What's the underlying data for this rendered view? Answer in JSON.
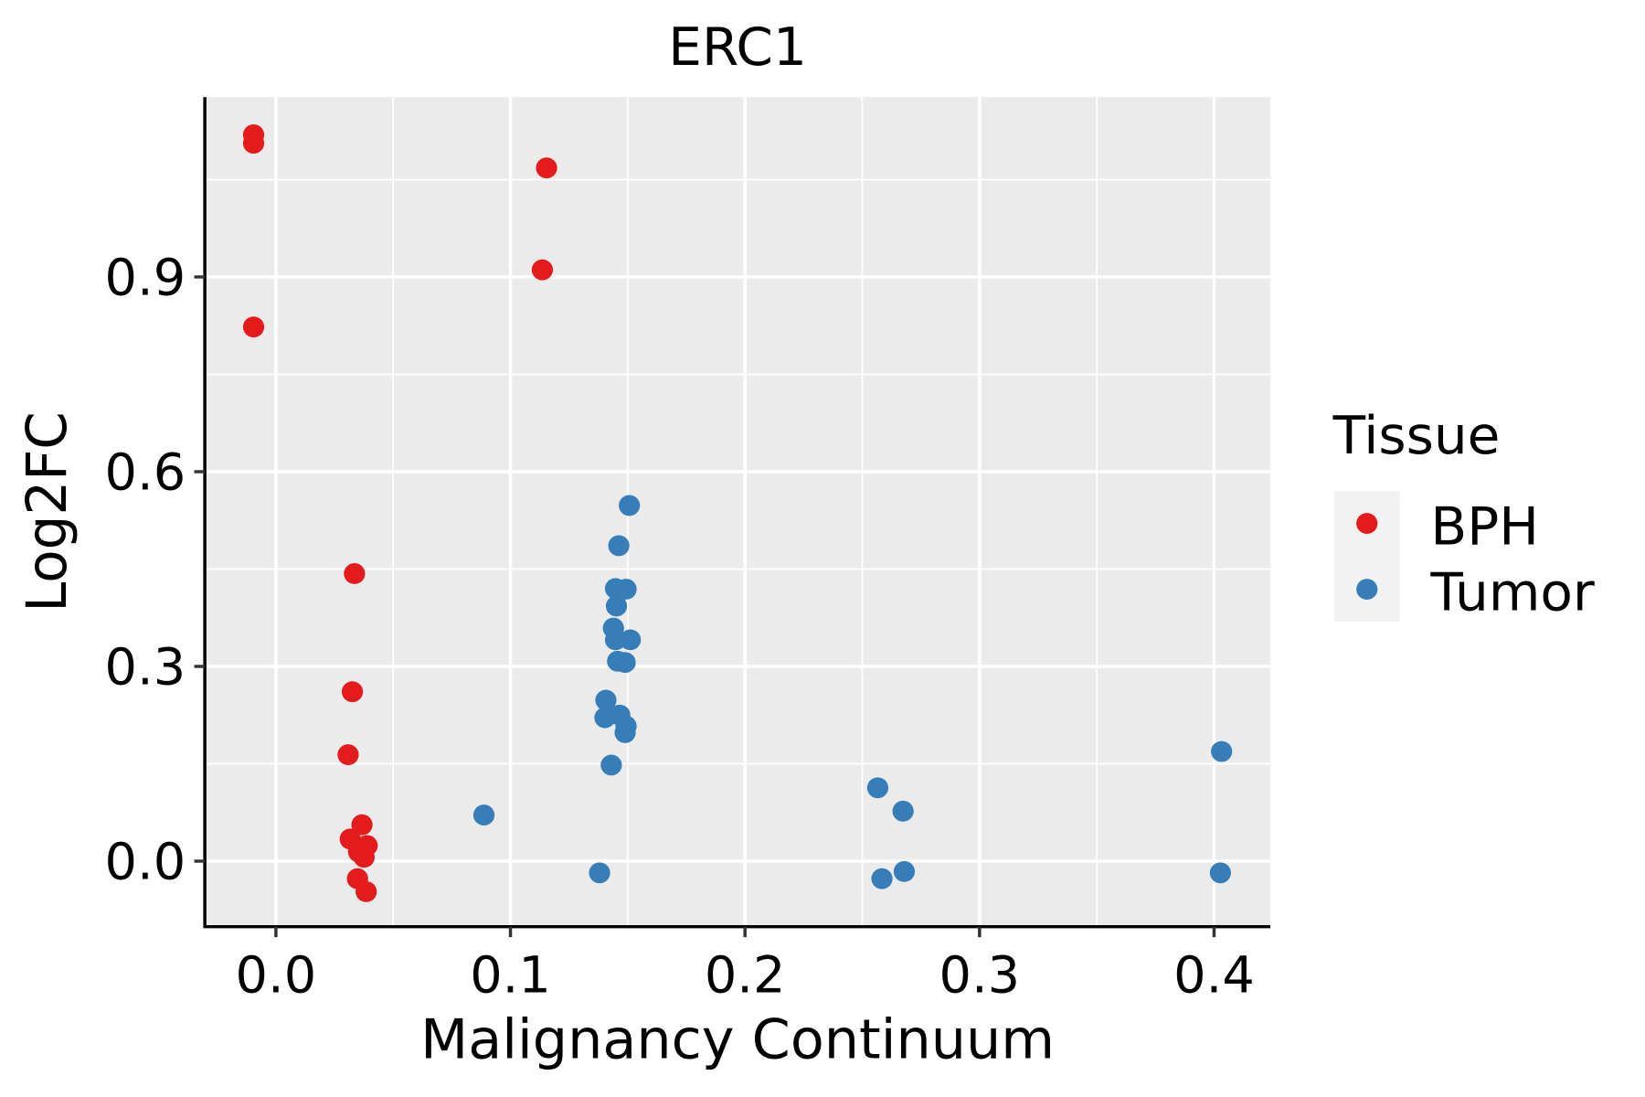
{
  "chart_data": {
    "type": "scatter",
    "title": "ERC1",
    "xlabel": "Malignancy Continuum",
    "ylabel": "Log2FC",
    "xlim": [
      -0.0303,
      0.424
    ],
    "ylim": [
      -0.101,
      1.177
    ],
    "xticks": [
      0.0,
      0.1,
      0.2,
      0.3,
      0.4
    ],
    "xtick_labels": [
      "0.0",
      "0.1",
      "0.2",
      "0.3",
      "0.4"
    ],
    "yticks": [
      0.0,
      0.3,
      0.6,
      0.9
    ],
    "ytick_labels": [
      "0.0",
      "0.3",
      "0.6",
      "0.9"
    ],
    "grid": true,
    "legend": {
      "title": "Tissue",
      "placement": "right"
    },
    "series": [
      {
        "name": "BPH",
        "color": "#E41A1C",
        "points": [
          [
            -0.0095,
            1.119
          ],
          [
            -0.0095,
            1.106
          ],
          [
            -0.0095,
            0.823
          ],
          [
            0.1154,
            1.068
          ],
          [
            0.1136,
            0.911
          ],
          [
            0.0335,
            0.443
          ],
          [
            0.0326,
            0.261
          ],
          [
            0.0308,
            0.164
          ],
          [
            0.0367,
            0.056
          ],
          [
            0.0317,
            0.034
          ],
          [
            0.0389,
            0.024
          ],
          [
            0.0353,
            0.014
          ],
          [
            0.0376,
            0.006
          ],
          [
            0.0348,
            -0.027
          ],
          [
            0.0385,
            -0.047
          ]
        ]
      },
      {
        "name": "Tumor",
        "color": "#377EB8",
        "points": [
          [
            0.1507,
            0.548
          ],
          [
            0.1462,
            0.486
          ],
          [
            0.1448,
            0.42
          ],
          [
            0.1493,
            0.419
          ],
          [
            0.1452,
            0.393
          ],
          [
            0.1439,
            0.359
          ],
          [
            0.1448,
            0.341
          ],
          [
            0.1511,
            0.341
          ],
          [
            0.1457,
            0.308
          ],
          [
            0.1489,
            0.306
          ],
          [
            0.1407,
            0.248
          ],
          [
            0.1466,
            0.225
          ],
          [
            0.1403,
            0.221
          ],
          [
            0.1493,
            0.208
          ],
          [
            0.1489,
            0.198
          ],
          [
            0.143,
            0.148
          ],
          [
            0.0887,
            0.071
          ],
          [
            0.138,
            -0.018
          ],
          [
            0.2566,
            0.113
          ],
          [
            0.2674,
            0.077
          ],
          [
            0.2584,
            -0.027
          ],
          [
            0.2679,
            -0.016
          ],
          [
            0.4032,
            0.169
          ],
          [
            0.4027,
            -0.018
          ]
        ]
      }
    ]
  }
}
